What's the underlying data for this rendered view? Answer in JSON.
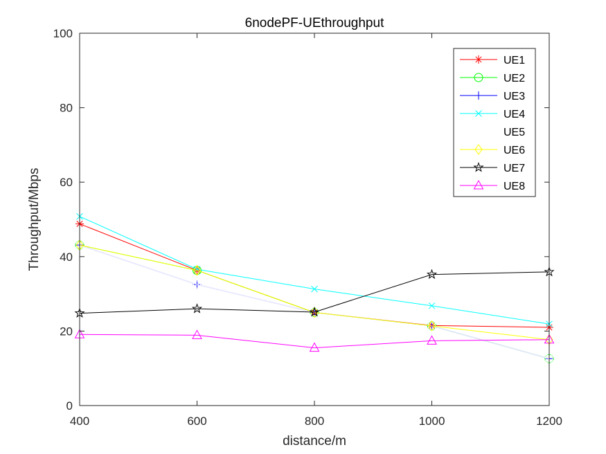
{
  "chart_data": {
    "type": "line",
    "title": "6nodePF-UEthroughput",
    "xlabel": "distance/m",
    "ylabel": "Throughput/Mbps",
    "x": [
      400,
      600,
      800,
      1000,
      1200
    ],
    "xlim": [
      400,
      1200
    ],
    "ylim": [
      0,
      100
    ],
    "xticks": [
      400,
      600,
      800,
      1000,
      1200
    ],
    "yticks": [
      0,
      20,
      40,
      60,
      80,
      100
    ],
    "grid": false,
    "legend_position": "top-right",
    "series": [
      {
        "name": "UE1",
        "color": "#ff0000",
        "marker": "asterisk",
        "values": [
          48.8,
          36.3,
          25.0,
          21.5,
          21.0
        ]
      },
      {
        "name": "UE2",
        "color": "#00ff00",
        "marker": "circle",
        "values": [
          43.1,
          36.3,
          25.0,
          21.4,
          12.6
        ]
      },
      {
        "name": "UE3",
        "color": "#0000ff",
        "marker": "plus",
        "values": [
          43.1,
          32.5,
          25.0,
          21.4,
          12.6
        ]
      },
      {
        "name": "UE4",
        "color": "#00ffff",
        "marker": "x",
        "values": [
          50.8,
          36.6,
          31.3,
          26.8,
          21.9
        ]
      },
      {
        "name": "UE5",
        "color": "#ffffff",
        "marker": "square",
        "values": [
          43.1,
          32.5,
          25.0,
          21.4,
          12.6
        ]
      },
      {
        "name": "UE6",
        "color": "#ffff00",
        "marker": "diamond",
        "values": [
          43.1,
          36.3,
          25.0,
          21.4,
          17.7
        ]
      },
      {
        "name": "UE7",
        "color": "#000000",
        "marker": "pentagram",
        "values": [
          24.8,
          26.0,
          25.1,
          35.2,
          35.9
        ]
      },
      {
        "name": "UE8",
        "color": "#ff00ff",
        "marker": "triangle",
        "values": [
          19.1,
          18.9,
          15.5,
          17.4,
          17.7
        ]
      }
    ]
  }
}
